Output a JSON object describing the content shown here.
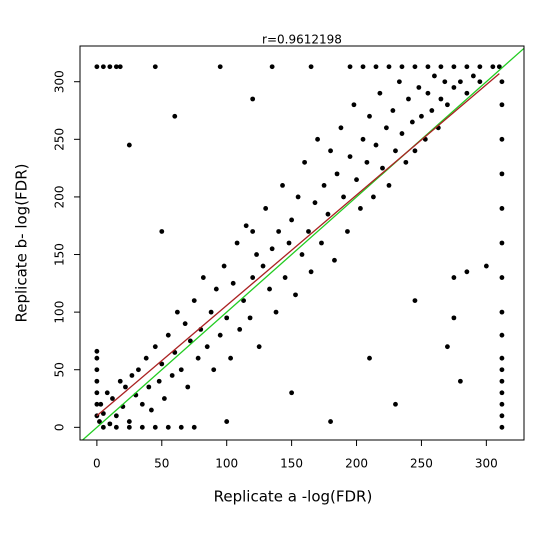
{
  "chart_data": {
    "type": "scatter",
    "title": "r=0.9612198",
    "x_label": "Replicate a   -log(FDR)",
    "y_label": "Replicate b-   log(FDR)",
    "color": "#000000",
    "xlim": [
      -13,
      329
    ],
    "ylim": [
      -11,
      331
    ],
    "xticks": [
      0,
      50,
      100,
      150,
      200,
      250,
      300
    ],
    "yticks": [
      0,
      50,
      100,
      150,
      200,
      250,
      300
    ],
    "x": [
      2,
      3,
      5,
      8,
      10,
      12,
      15,
      18,
      20,
      22,
      25,
      27,
      30,
      32,
      35,
      38,
      40,
      42,
      45,
      48,
      50,
      52,
      55,
      58,
      60,
      62,
      65,
      68,
      70,
      72,
      75,
      78,
      80,
      82,
      85,
      88,
      90,
      92,
      95,
      98,
      100,
      103,
      105,
      108,
      110,
      113,
      115,
      118,
      120,
      123,
      125,
      128,
      130,
      133,
      135,
      138,
      140,
      143,
      145,
      148,
      150,
      153,
      155,
      158,
      160,
      163,
      165,
      168,
      170,
      173,
      175,
      178,
      180,
      183,
      185,
      188,
      190,
      193,
      195,
      198,
      200,
      203,
      205,
      208,
      210,
      213,
      215,
      218,
      220,
      223,
      225,
      228,
      230,
      233,
      235,
      238,
      240,
      243,
      245,
      248,
      250,
      253,
      255,
      258,
      260,
      263,
      265,
      268,
      270,
      275,
      280,
      285,
      290,
      295,
      25,
      60,
      120,
      50,
      270,
      275,
      280,
      230,
      180,
      150,
      100,
      245,
      275,
      285,
      300,
      210,
      120,
      0,
      5,
      10,
      15,
      18,
      45,
      95,
      135,
      165,
      195,
      205,
      215,
      225,
      235,
      245,
      255,
      265,
      275,
      285,
      295,
      305,
      310,
      312,
      312,
      312,
      312,
      312,
      312,
      312,
      312,
      312,
      312,
      312,
      312,
      312,
      312,
      312,
      312,
      0,
      0,
      0,
      0,
      0,
      0,
      0,
      5,
      15,
      25,
      35,
      45,
      55,
      65,
      75
    ],
    "y": [
      5,
      20,
      12,
      30,
      3,
      25,
      10,
      40,
      18,
      35,
      5,
      45,
      28,
      50,
      20,
      60,
      35,
      15,
      70,
      40,
      55,
      25,
      80,
      45,
      65,
      100,
      50,
      90,
      35,
      75,
      110,
      60,
      85,
      130,
      70,
      100,
      50,
      120,
      80,
      140,
      95,
      60,
      125,
      160,
      85,
      110,
      175,
      95,
      130,
      150,
      70,
      140,
      190,
      120,
      155,
      100,
      170,
      210,
      130,
      160,
      180,
      115,
      200,
      150,
      230,
      170,
      135,
      195,
      250,
      160,
      210,
      185,
      240,
      145,
      220,
      260,
      200,
      170,
      235,
      280,
      215,
      190,
      250,
      230,
      270,
      200,
      245,
      290,
      225,
      260,
      210,
      275,
      240,
      300,
      255,
      230,
      285,
      265,
      240,
      295,
      270,
      250,
      290,
      275,
      305,
      260,
      285,
      300,
      280,
      295,
      300,
      290,
      305,
      300,
      245,
      270,
      285,
      170,
      70,
      95,
      40,
      20,
      5,
      30,
      5,
      110,
      130,
      135,
      140,
      60,
      170,
      313,
      313,
      313,
      313,
      313,
      313,
      313,
      313,
      313,
      313,
      313,
      313,
      313,
      313,
      313,
      313,
      313,
      313,
      313,
      313,
      313,
      313,
      0,
      10,
      20,
      30,
      40,
      50,
      60,
      80,
      100,
      130,
      160,
      190,
      220,
      250,
      280,
      300,
      10,
      20,
      30,
      40,
      50,
      60,
      66,
      0,
      0,
      0,
      0,
      0,
      0,
      0,
      0
    ],
    "lines": [
      {
        "color": "#22cc22",
        "x": [
          -13,
          329
        ],
        "y": [
          -13,
          329
        ]
      },
      {
        "color": "#aa2222",
        "x": [
          0,
          310
        ],
        "y": [
          10,
          307
        ]
      }
    ]
  }
}
